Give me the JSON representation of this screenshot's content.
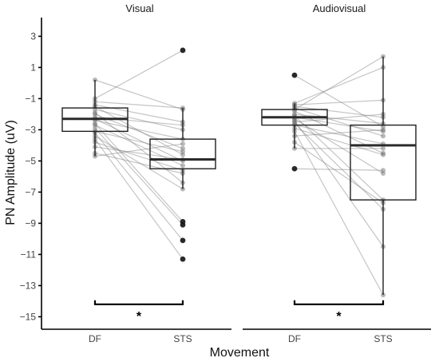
{
  "chart_data": {
    "type": "boxplot",
    "ylabel": "PN Amplitude (uV)",
    "xlabel": "Movement",
    "ylim": [
      -15.8,
      4.2
    ],
    "yticks": [
      3,
      1,
      -1,
      -3,
      -5,
      -7,
      -9,
      -11,
      -13,
      -15
    ],
    "ytick_labels": [
      "3",
      "1",
      "−1",
      "−3",
      "−5",
      "−7",
      "−9",
      "−11",
      "−13",
      "−15"
    ],
    "categories": [
      "DF",
      "STS"
    ],
    "grid": false,
    "panels": [
      {
        "title": "Visual",
        "boxes": [
          {
            "category": "DF",
            "q1": -3.1,
            "median": -2.3,
            "q3": -1.6,
            "whisker_low": -4.7,
            "whisker_high": 0.2,
            "outliers": []
          },
          {
            "category": "STS",
            "q1": -5.5,
            "median": -4.9,
            "q3": -3.6,
            "whisker_low": -6.8,
            "whisker_high": -1.6,
            "outliers": [
              2.1,
              -8.9,
              -9.1,
              -10.1,
              -11.3
            ]
          }
        ],
        "pairs": [
          [
            0.2,
            -1.7
          ],
          [
            -1.0,
            2.1
          ],
          [
            -1.2,
            -1.6
          ],
          [
            -1.4,
            -2.5
          ],
          [
            -1.5,
            -4.6
          ],
          [
            -1.7,
            -3.0
          ],
          [
            -1.9,
            -6.4
          ],
          [
            -2.0,
            -4.2
          ],
          [
            -2.2,
            -2.7
          ],
          [
            -2.3,
            -5.0
          ],
          [
            -2.4,
            -3.6
          ],
          [
            -2.6,
            -8.9
          ],
          [
            -2.7,
            -5.3
          ],
          [
            -2.9,
            -9.1
          ],
          [
            -3.1,
            -4.4
          ],
          [
            -3.2,
            -10.1
          ],
          [
            -3.4,
            -6.8
          ],
          [
            -3.6,
            -11.3
          ],
          [
            -3.8,
            -5.6
          ],
          [
            -4.1,
            -4.9
          ],
          [
            -4.5,
            -5.8
          ],
          [
            -4.7,
            -3.9
          ]
        ],
        "significance": {
          "label": "*",
          "y": -14.2
        }
      },
      {
        "title": "Audiovisual",
        "boxes": [
          {
            "category": "DF",
            "q1": -2.7,
            "median": -2.2,
            "q3": -1.7,
            "whisker_low": -4.2,
            "whisker_high": -1.3,
            "outliers": [
              0.5,
              -5.5
            ]
          },
          {
            "category": "STS",
            "q1": -7.5,
            "median": -4.0,
            "q3": -2.7,
            "whisker_low": -13.6,
            "whisker_high": 1.7,
            "outliers": []
          }
        ],
        "pairs": [
          [
            0.5,
            -2.8
          ],
          [
            -1.3,
            1.0
          ],
          [
            -1.4,
            -1.1
          ],
          [
            -1.5,
            -2.2
          ],
          [
            -1.6,
            -3.4
          ],
          [
            -1.7,
            1.7
          ],
          [
            -1.8,
            -4.5
          ],
          [
            -2.0,
            -2.6
          ],
          [
            -2.1,
            -7.5
          ],
          [
            -2.2,
            -3.1
          ],
          [
            -2.3,
            -5.8
          ],
          [
            -2.4,
            -10.5
          ],
          [
            -2.5,
            -2.0
          ],
          [
            -2.6,
            -8.1
          ],
          [
            -2.7,
            -3.9
          ],
          [
            -2.9,
            -4.6
          ],
          [
            -3.1,
            -13.6
          ],
          [
            -3.4,
            -3.0
          ],
          [
            -3.8,
            -7.7
          ],
          [
            -4.2,
            -4.2
          ],
          [
            -5.5,
            -5.6
          ]
        ],
        "significance": {
          "label": "*",
          "y": -14.2
        }
      }
    ]
  }
}
